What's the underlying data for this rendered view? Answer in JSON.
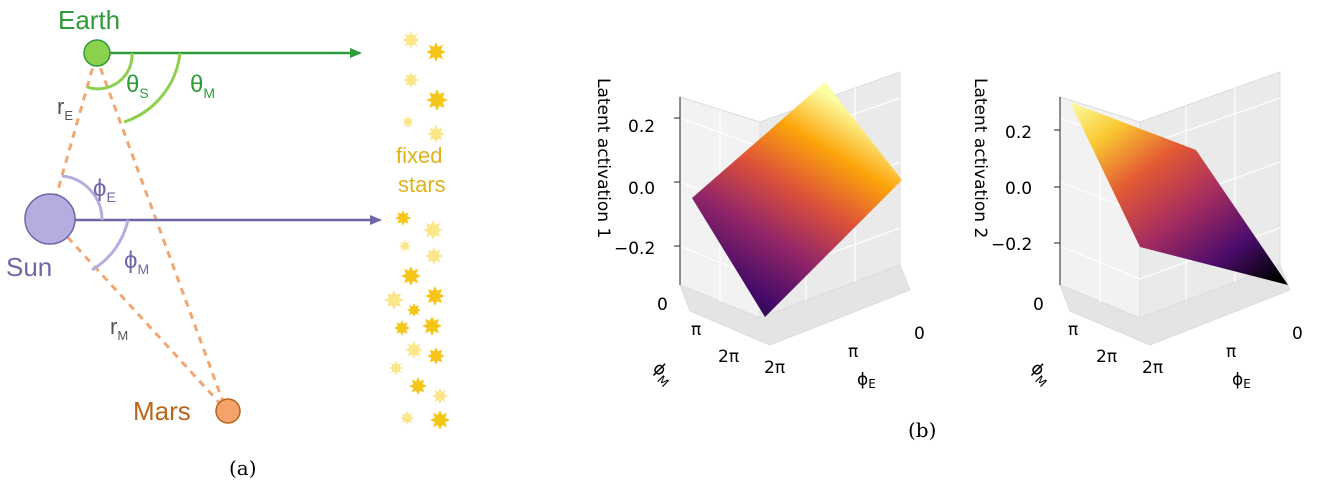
{
  "panel_a": {
    "caption": "(a)",
    "earth_label": "Earth",
    "sun_label": "Sun",
    "mars_label": "Mars",
    "r_e": {
      "base": "r",
      "sub": "E"
    },
    "r_m": {
      "base": "r",
      "sub": "M"
    },
    "theta_s": {
      "base": "θ",
      "sub": "S"
    },
    "theta_m": {
      "base": "θ",
      "sub": "M"
    },
    "phi_e": {
      "base": "ϕ",
      "sub": "E"
    },
    "phi_m": {
      "base": "ϕ",
      "sub": "M"
    },
    "stars_label_line1": "fixed",
    "stars_label_line2": "stars",
    "colors": {
      "earth": "#2e9b3a",
      "earth_fill": "#8bd14e",
      "sun": "#6f66a8",
      "sun_fill": "#b4aee0",
      "mars": "#b8651a",
      "mars_fill": "#f4a36a",
      "dashed": "#f2a772",
      "stars_text": "#e0b21a",
      "star": "#f5c518",
      "star_light": "#fbe68a"
    }
  },
  "panel_b": {
    "caption": "(b)",
    "plot1": {
      "zlabel": "Latent activation 1",
      "z_ticks": [
        "0.2",
        "0.0",
        "−0.2"
      ],
      "x_ticks": [
        "2π",
        "π",
        "0"
      ],
      "y_ticks": [
        "0",
        "π",
        "2π"
      ],
      "xlabel": "ϕ",
      "xlabel_sub": "E",
      "ylabel": "ϕ",
      "ylabel_sub": "M"
    },
    "plot2": {
      "zlabel": "Latent activation 2",
      "z_ticks": [
        "0.2",
        "0.0",
        "−0.2"
      ],
      "x_ticks": [
        "2π",
        "π",
        "0"
      ],
      "y_ticks": [
        "0",
        "π",
        "2π"
      ],
      "xlabel": "ϕ",
      "xlabel_sub": "E",
      "ylabel": "ϕ",
      "ylabel_sub": "M"
    },
    "colormap": "inferno"
  }
}
